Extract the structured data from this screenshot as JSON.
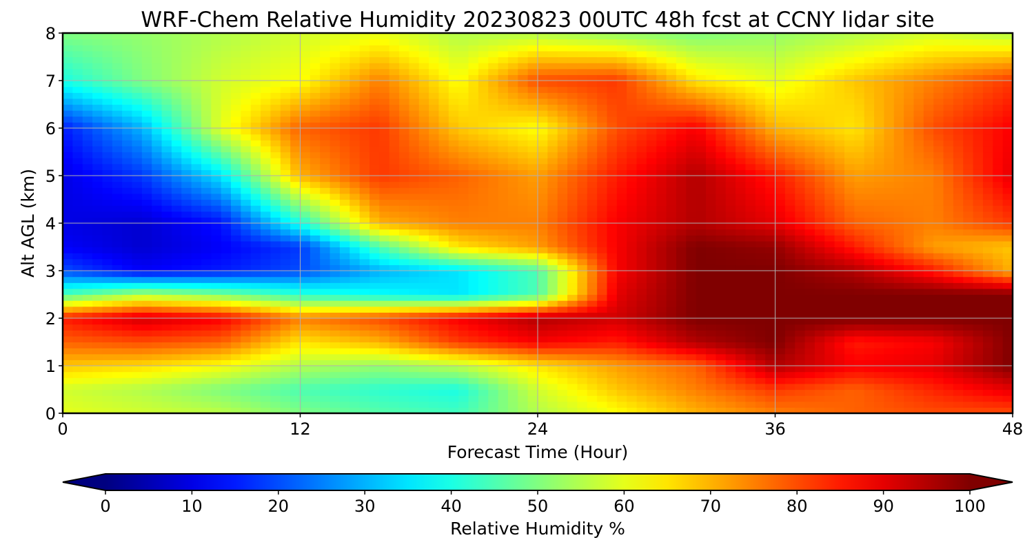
{
  "chart_data": {
    "type": "heatmap",
    "title": "WRF-Chem Relative Humidity 20230823 00UTC 48h fcst at CCNY lidar site",
    "xlabel": "Forecast Time (Hour)",
    "ylabel": "Alt AGL (km)",
    "xlim": [
      0,
      48
    ],
    "ylim": [
      0,
      8
    ],
    "xticks": [
      0,
      12,
      24,
      36,
      48
    ],
    "yticks": [
      0,
      1,
      2,
      3,
      4,
      5,
      6,
      7,
      8
    ],
    "grid": true,
    "colormap": "jet",
    "colorbar": {
      "label": "Relative Humidity %",
      "min": 0,
      "max": 100,
      "ticks": [
        0,
        10,
        20,
        30,
        40,
        50,
        60,
        70,
        80,
        90,
        100
      ],
      "extend": "both",
      "orientation": "horizontal"
    },
    "x": [
      0,
      4,
      8,
      12,
      16,
      20,
      24,
      28,
      32,
      36,
      40,
      44,
      48
    ],
    "y": [
      0,
      0.5,
      1,
      1.5,
      2,
      2.5,
      3,
      3.5,
      4,
      5,
      6,
      7,
      8
    ],
    "z": [
      [
        60,
        58,
        56,
        50,
        46,
        44,
        55,
        62,
        70,
        75,
        78,
        80,
        80
      ],
      [
        58,
        55,
        50,
        45,
        42,
        40,
        58,
        68,
        75,
        82,
        78,
        84,
        90
      ],
      [
        68,
        66,
        62,
        55,
        52,
        56,
        65,
        72,
        78,
        95,
        88,
        90,
        100
      ],
      [
        78,
        80,
        78,
        65,
        70,
        82,
        88,
        85,
        95,
        100,
        85,
        88,
        100
      ],
      [
        85,
        92,
        88,
        75,
        80,
        88,
        95,
        92,
        100,
        100,
        100,
        100,
        100
      ],
      [
        45,
        55,
        50,
        42,
        38,
        35,
        45,
        90,
        100,
        100,
        100,
        100,
        100
      ],
      [
        20,
        12,
        15,
        20,
        30,
        35,
        45,
        88,
        100,
        100,
        95,
        85,
        70
      ],
      [
        12,
        8,
        12,
        18,
        45,
        65,
        72,
        88,
        100,
        98,
        85,
        72,
        68
      ],
      [
        10,
        8,
        14,
        40,
        70,
        75,
        75,
        88,
        95,
        90,
        78,
        75,
        82
      ],
      [
        10,
        18,
        35,
        70,
        82,
        78,
        72,
        85,
        95,
        85,
        72,
        75,
        90
      ],
      [
        15,
        30,
        60,
        78,
        82,
        68,
        62,
        80,
        88,
        70,
        65,
        80,
        88
      ],
      [
        40,
        50,
        58,
        62,
        75,
        62,
        80,
        82,
        65,
        60,
        68,
        75,
        82
      ],
      [
        50,
        52,
        55,
        58,
        60,
        55,
        55,
        52,
        50,
        52,
        55,
        58,
        55
      ]
    ]
  }
}
